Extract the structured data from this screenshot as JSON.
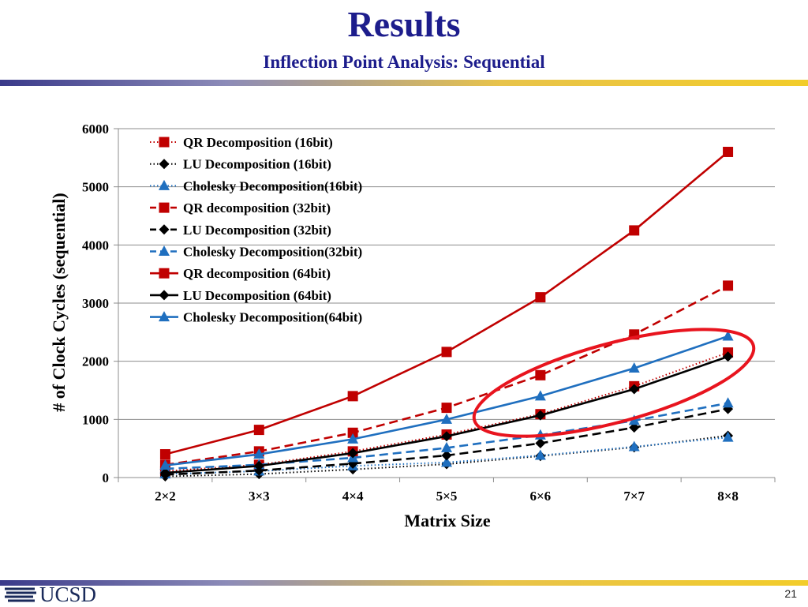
{
  "slide": {
    "title": "Results",
    "subtitle": "Inflection Point Analysis: Sequential",
    "page_number": "21",
    "logo_text": "UCSD"
  },
  "chart_data": {
    "type": "line",
    "title": "",
    "xlabel": "Matrix Size",
    "ylabel": "# of Clock Cycles (sequential)",
    "categories": [
      "2×2",
      "3×3",
      "4×4",
      "5×5",
      "6×6",
      "7×7",
      "8×8"
    ],
    "ylim": [
      0,
      6000
    ],
    "yticks": [
      0,
      1000,
      2000,
      3000,
      4000,
      5000,
      6000
    ],
    "grid": true,
    "legend_position": "top-left",
    "highlight": "red ellipse around the upper region of the 6×6 to 8×8 points",
    "series": [
      {
        "name": "QR Decomposition (16bit)",
        "color": "#c00000",
        "marker": "square",
        "line": "dotted",
        "values": [
          110,
          220,
          450,
          740,
          1090,
          1570,
          2150
        ]
      },
      {
        "name": "LU Decomposition (16bit)",
        "color": "#000000",
        "marker": "diamond",
        "line": "dotted",
        "values": [
          20,
          60,
          140,
          230,
          370,
          520,
          720
        ]
      },
      {
        "name": "Cholesky Decomposition(16bit)",
        "color": "#1f6fbf",
        "marker": "triangle",
        "line": "dotted",
        "values": [
          60,
          110,
          200,
          260,
          380,
          530,
          690
        ]
      },
      {
        "name": "QR decomposition (32bit)",
        "color": "#c00000",
        "marker": "square",
        "line": "dashed",
        "values": [
          220,
          450,
          770,
          1200,
          1760,
          2460,
          3300
        ]
      },
      {
        "name": "LU Decomposition (32bit)",
        "color": "#000000",
        "marker": "diamond",
        "line": "dashed",
        "values": [
          50,
          120,
          240,
          380,
          590,
          860,
          1180
        ]
      },
      {
        "name": "Cholesky Decomposition(32bit)",
        "color": "#1f6fbf",
        "marker": "triangle",
        "line": "dashed",
        "values": [
          150,
          220,
          340,
          510,
          730,
          980,
          1280
        ]
      },
      {
        "name": "QR decomposition (64bit)",
        "color": "#c00000",
        "marker": "square",
        "line": "solid",
        "values": [
          400,
          820,
          1400,
          2160,
          3100,
          4250,
          5600
        ]
      },
      {
        "name": "LU Decomposition (64bit)",
        "color": "#000000",
        "marker": "diamond",
        "line": "solid",
        "values": [
          80,
          200,
          420,
          710,
          1070,
          1520,
          2080
        ]
      },
      {
        "name": "Cholesky Decomposition(64bit)",
        "color": "#1f6fbf",
        "marker": "triangle",
        "line": "solid",
        "values": [
          210,
          400,
          660,
          1000,
          1400,
          1880,
          2430
        ]
      }
    ]
  }
}
